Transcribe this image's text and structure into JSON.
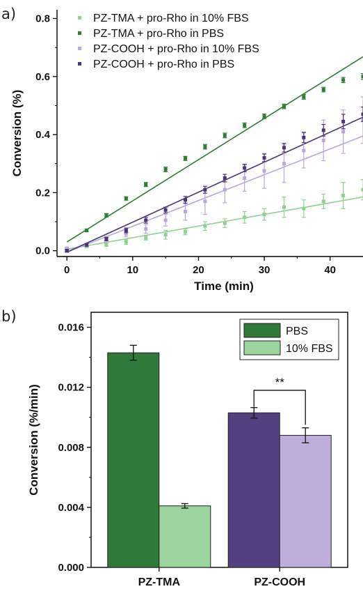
{
  "panels": {
    "a": "a)",
    "b": "b)"
  },
  "colors": {
    "tma_fbs": "#8fd18f",
    "tma_pbs": "#2e7d32",
    "cooh_fbs": "#b9a6da",
    "cooh_pbs": "#4b3478",
    "bar_tma_pbs": "#2f7a3a",
    "bar_tma_fbs": "#9bd49f",
    "bar_cooh_pbs": "#55407f",
    "bar_cooh_fbs": "#bfaedb"
  },
  "chart_data": [
    {
      "type": "scatter",
      "xlabel": "Time (min)",
      "ylabel": "Conversion (%)",
      "xlim": [
        -1.5,
        45
      ],
      "ylim": [
        -0.02,
        0.83
      ],
      "xticks": [
        "0",
        "10",
        "20",
        "30",
        "40"
      ],
      "yticks": [
        "0.0",
        "0.2",
        "0.4",
        "0.6",
        "0.8"
      ],
      "legend": "top-left",
      "series": [
        {
          "name": "PZ-TMA + pro-Rho in 10% FBS",
          "color_key": "tma_fbs",
          "x": [
            0,
            3,
            6,
            9,
            12,
            15,
            18,
            21,
            24,
            27,
            30,
            33,
            36,
            39,
            42,
            45
          ],
          "y": [
            0.005,
            0.015,
            0.02,
            0.03,
            0.045,
            0.055,
            0.065,
            0.085,
            0.095,
            0.115,
            0.125,
            0.15,
            0.145,
            0.17,
            0.19,
            0.21
          ],
          "err": [
            0.005,
            0.005,
            0.005,
            0.008,
            0.008,
            0.015,
            0.01,
            0.015,
            0.015,
            0.02,
            0.02,
            0.035,
            0.03,
            0.025,
            0.045,
            0.035
          ],
          "fit": [
            [
              0,
              0.005
            ],
            [
              45,
              0.185
            ]
          ]
        },
        {
          "name": "PZ-TMA + pro-Rho in PBS",
          "color_key": "tma_pbs",
          "x": [
            0,
            3,
            6,
            9,
            12,
            15,
            18,
            21,
            24,
            27,
            30,
            33,
            36,
            39,
            42,
            45
          ],
          "y": [
            0.0,
            0.07,
            0.122,
            0.18,
            0.228,
            0.28,
            0.318,
            0.358,
            0.397,
            0.432,
            0.463,
            0.497,
            0.53,
            0.555,
            0.588,
            0.6
          ],
          "err": [
            0.005,
            0.005,
            0.006,
            0.006,
            0.007,
            0.008,
            0.007,
            0.008,
            0.008,
            0.008,
            0.008,
            0.008,
            0.008,
            0.008,
            0.009,
            0.01
          ],
          "fit": [
            [
              0,
              0.03
            ],
            [
              45,
              0.668
            ]
          ]
        },
        {
          "name": "PZ-COOH + pro-Rho in 10% FBS",
          "color_key": "cooh_fbs",
          "x": [
            0,
            3,
            6,
            9,
            12,
            15,
            18,
            21,
            24,
            27,
            30,
            33,
            36,
            39,
            42,
            45
          ],
          "y": [
            0.005,
            0.02,
            0.04,
            0.058,
            0.075,
            0.105,
            0.135,
            0.17,
            0.21,
            0.25,
            0.275,
            0.3,
            0.345,
            0.38,
            0.41,
            0.45
          ],
          "err": [
            0.008,
            0.005,
            0.01,
            0.01,
            0.015,
            0.02,
            0.03,
            0.045,
            0.045,
            0.045,
            0.06,
            0.065,
            0.06,
            0.07,
            0.075,
            0.08
          ],
          "fit": [
            [
              0,
              -0.005
            ],
            [
              45,
              0.395
            ]
          ]
        },
        {
          "name": "PZ-COOH + pro-Rho in PBS",
          "color_key": "cooh_pbs",
          "x": [
            0,
            3,
            6,
            9,
            12,
            15,
            18,
            21,
            24,
            27,
            30,
            33,
            36,
            39,
            42,
            45
          ],
          "y": [
            0.0,
            0.02,
            0.04,
            0.07,
            0.105,
            0.14,
            0.175,
            0.21,
            0.25,
            0.285,
            0.32,
            0.355,
            0.39,
            0.415,
            0.445,
            0.47
          ],
          "err": [
            0.005,
            0.005,
            0.006,
            0.008,
            0.01,
            0.01,
            0.012,
            0.012,
            0.013,
            0.013,
            0.013,
            0.015,
            0.018,
            0.02,
            0.025,
            0.025
          ],
          "fit": [
            [
              0,
              -0.005
            ],
            [
              45,
              0.46
            ]
          ]
        }
      ]
    },
    {
      "type": "bar",
      "ylabel": "Conversion (%/min)",
      "categories": [
        "PZ-TMA",
        "PZ-COOH"
      ],
      "ylim": [
        0,
        0.017
      ],
      "yticks": [
        "0.000",
        "0.004",
        "0.008",
        "0.012",
        "0.016"
      ],
      "legend": "top-right",
      "legend_entries": [
        {
          "label": "PBS",
          "color_key": "bar_tma_pbs"
        },
        {
          "label": "10% FBS",
          "color_key": "bar_tma_fbs"
        }
      ],
      "series": [
        {
          "name": "PBS",
          "values": [
            0.0143,
            0.0103
          ],
          "err": [
            0.0005,
            0.00035
          ],
          "color_keys": [
            "bar_tma_pbs",
            "bar_cooh_pbs"
          ]
        },
        {
          "name": "10% FBS",
          "values": [
            0.0041,
            0.0088
          ],
          "err": [
            0.00015,
            0.0005
          ],
          "color_keys": [
            "bar_tma_fbs",
            "bar_cooh_fbs"
          ]
        }
      ],
      "significance": {
        "label": "**",
        "between": "PZ-COOH"
      }
    }
  ]
}
